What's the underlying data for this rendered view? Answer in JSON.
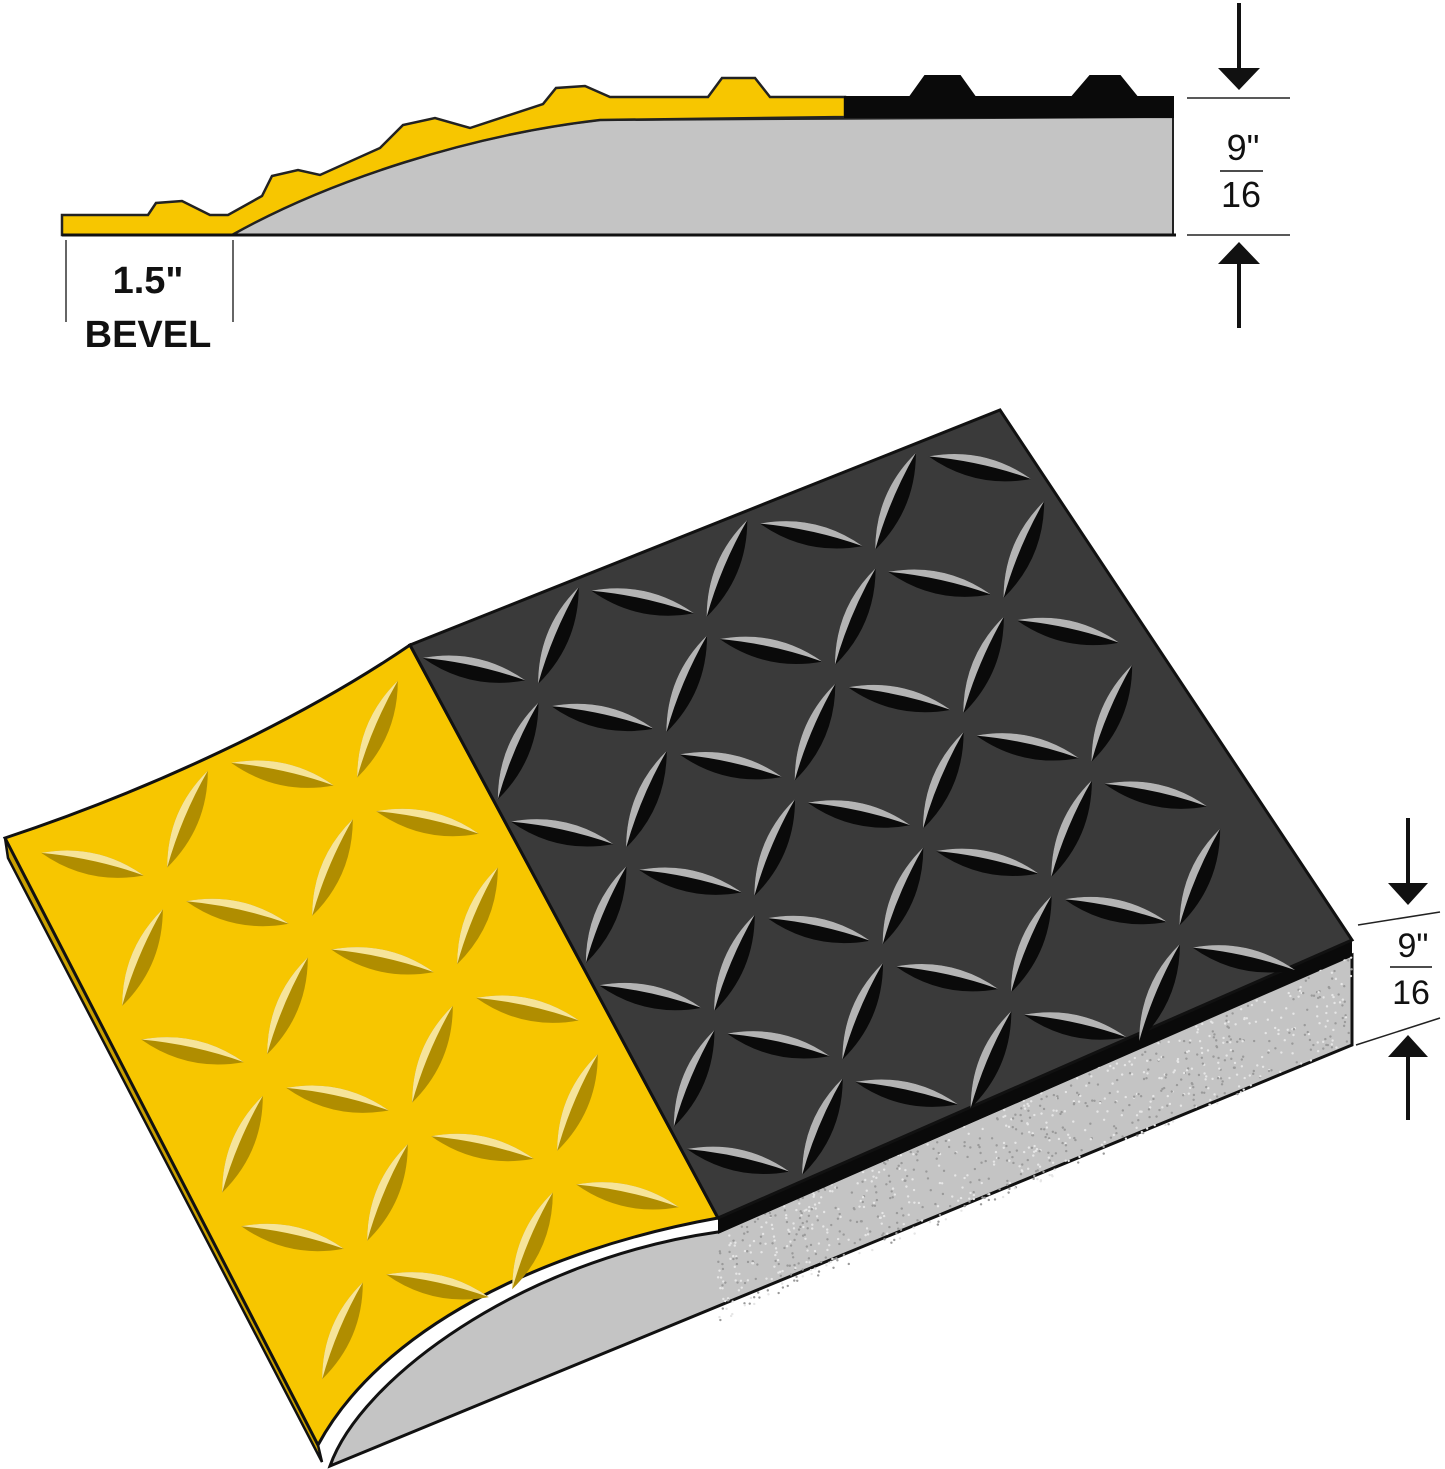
{
  "colors": {
    "yellow": "#f7c600",
    "yellow_dark": "#b08d00",
    "yellow_light": "#f6e49a",
    "black_surface": "#3a3a3a",
    "black_edge": "#0a0a0a",
    "foam": "#c4c4c4",
    "plate_highlight": "#b4b4b4"
  },
  "profile_view": {
    "bevel_width": "1.5\"",
    "bevel_label": "BEVEL",
    "thickness_numerator": "9\"",
    "thickness_denominator": "16"
  },
  "perspective_view": {
    "thickness_numerator": "9\"",
    "thickness_denominator": "16",
    "surface_pattern": "diamond-plate"
  }
}
